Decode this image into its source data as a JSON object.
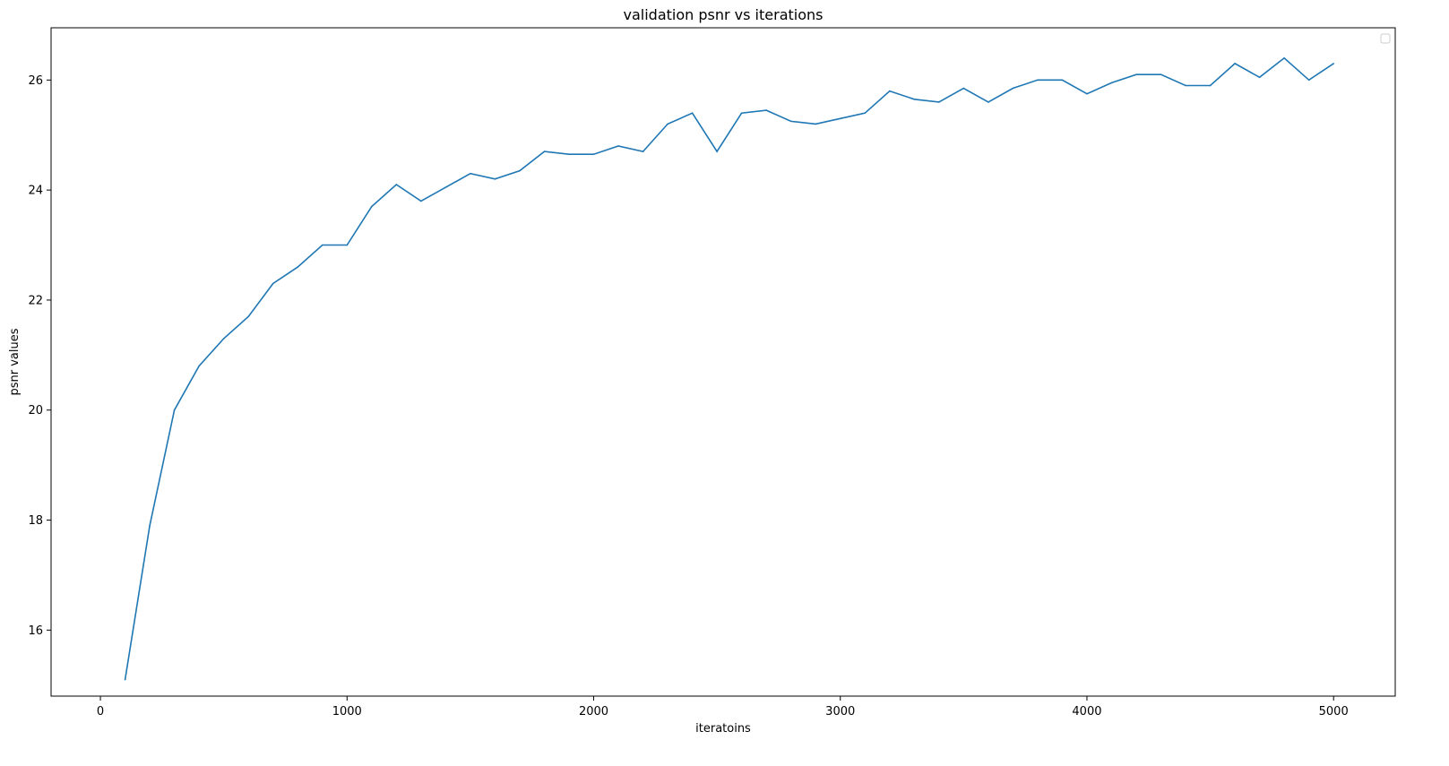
{
  "chart_data": {
    "type": "line",
    "title": "validation psnr vs iterations",
    "xlabel": "iteratoins",
    "ylabel": "psnr values",
    "xlim": [
      -200,
      5250
    ],
    "ylim": [
      14.8,
      26.95
    ],
    "xticks": [
      0,
      1000,
      2000,
      3000,
      4000,
      5000
    ],
    "yticks": [
      16,
      18,
      20,
      22,
      24,
      26
    ],
    "grid": false,
    "legend": "top-right (empty)",
    "series": [
      {
        "color": "#1f77b4",
        "x": [
          100,
          200,
          300,
          400,
          500,
          600,
          700,
          800,
          900,
          1000,
          1100,
          1200,
          1300,
          1400,
          1500,
          1600,
          1700,
          1800,
          1900,
          2000,
          2100,
          2200,
          2300,
          2400,
          2500,
          2600,
          2700,
          2800,
          2900,
          3000,
          3100,
          3200,
          3300,
          3400,
          3500,
          3600,
          3700,
          3800,
          3900,
          4000,
          4100,
          4200,
          4300,
          4400,
          4500,
          4600,
          4700,
          4800,
          4900,
          5000
        ],
        "y": [
          15.1,
          17.9,
          20.0,
          20.8,
          21.3,
          21.7,
          22.3,
          22.6,
          23.0,
          23.0,
          23.7,
          24.1,
          23.8,
          24.05,
          24.3,
          24.2,
          24.35,
          24.7,
          24.65,
          24.65,
          24.8,
          24.7,
          25.2,
          25.4,
          24.7,
          25.4,
          25.45,
          25.25,
          25.2,
          25.3,
          25.4,
          25.8,
          25.65,
          25.6,
          25.85,
          25.6,
          25.85,
          26.0,
          26.0,
          25.75,
          25.95,
          26.1,
          26.1,
          25.9,
          25.9,
          26.3,
          26.05,
          26.4,
          26.0,
          26.3
        ]
      }
    ]
  }
}
